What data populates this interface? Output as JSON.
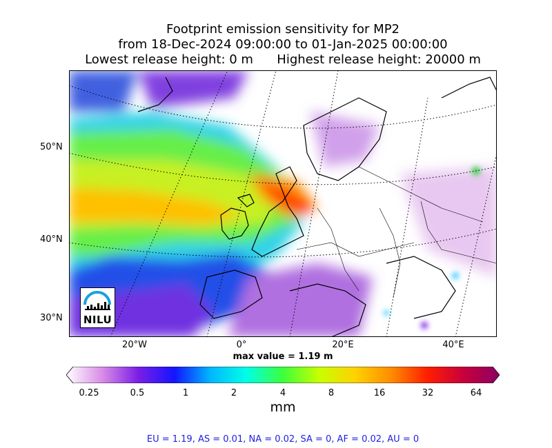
{
  "title": {
    "line1": "Footprint emission sensitivity for MP2",
    "line2": "from 18-Dec-2024 09:00:00 to 01-Jan-2025 00:00:00",
    "line3": "Lowest release height: 0 m      Highest release height: 20000 m"
  },
  "axes": {
    "lat_labels": [
      "50°N",
      "40°N",
      "30°N"
    ],
    "lon_labels": [
      "20°W",
      "0°",
      "20°E",
      "40°E"
    ]
  },
  "logo": {
    "text": "NILU"
  },
  "max_value_label": "max value = 1.19 m",
  "colorbar": {
    "ticks": [
      "0.25",
      "0.5",
      "1",
      "2",
      "4",
      "8",
      "16",
      "32",
      "64"
    ],
    "unit": "mm",
    "colors": [
      "#ffffff",
      "#d98ce6",
      "#7a1ee6",
      "#1414ff",
      "#00b8ff",
      "#00ffe6",
      "#3cff3c",
      "#c8ff00",
      "#ffd200",
      "#ff8c00",
      "#ff1e00",
      "#c8003c",
      "#8c0064"
    ]
  },
  "footer": "EU = 1.19,  AS = 0.01,  NA = 0.02,  SA = 0,  AF = 0.02,  AU = 0"
}
